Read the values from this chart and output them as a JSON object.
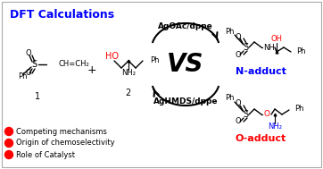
{
  "title": "DFT Calculations",
  "title_color": "#0000FF",
  "top_catalyst": "AgOAc/dppe",
  "bottom_catalyst": "AgHMDS/dppe",
  "vs_text": "VS",
  "n_adduct_label": "N-adduct",
  "o_adduct_label": "O-adduct",
  "n_adduct_color": "#0000FF",
  "o_adduct_color": "#FF0000",
  "bullet_items": [
    "Competing mechanisms",
    "Origin of chemoselectivity",
    "Role of Catalyst"
  ],
  "bullet_color": "#FF0000",
  "background_color": "#FFFFFF",
  "oh_color": "#FF0000",
  "nh2_color": "#0000FF",
  "o_linker_color": "#FF0000"
}
